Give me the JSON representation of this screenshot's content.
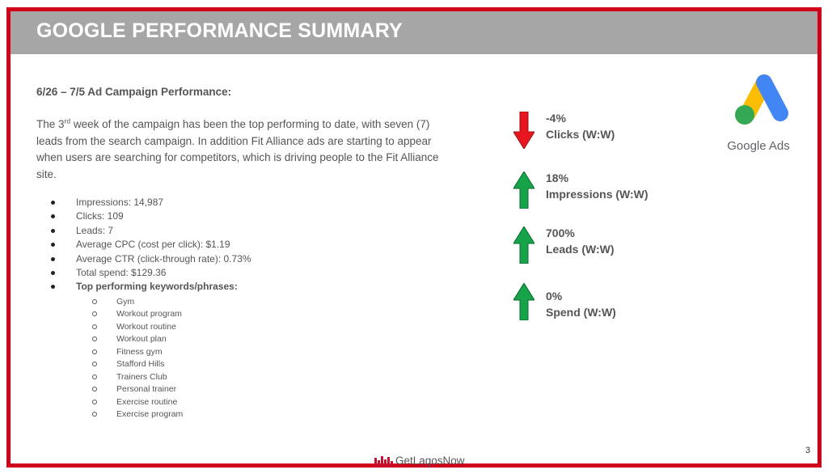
{
  "header": {
    "title": "GOOGLE PERFORMANCE SUMMARY"
  },
  "section": {
    "heading": "6/26 – 7/5 Ad Campaign Performance:"
  },
  "intro": {
    "part1": "The 3",
    "sup": "rd",
    "part2": " week of the campaign has been the top performing to date, with seven (7) leads from the search campaign. In addition Fit Alliance ads are starting to appear when users are searching for competitors, which is driving people to the Fit Alliance site."
  },
  "metrics": [
    "Impressions: 14,987",
    "Clicks: 109",
    "Leads: 7",
    "Average CPC (cost per click): $1.19",
    "Average CTR (click-through rate): 0.73%",
    "Total spend: $129.36",
    "Top performing keywords/phrases:"
  ],
  "keywords": [
    "Gym",
    "Workout program",
    "Workout routine",
    "Workout plan",
    "Fitness gym",
    "Stafford Hills",
    "Trainers Club",
    "Personal trainer",
    "Exercise routine",
    "Exercise program"
  ],
  "stats": [
    {
      "value": "-4%",
      "label": "Clicks (W:W)",
      "direction": "down",
      "color": "#e8171f"
    },
    {
      "value": "18%",
      "label": "Impressions (W:W)",
      "direction": "up",
      "color": "#16a34a"
    },
    {
      "value": "700%",
      "label": "Leads (W:W)",
      "direction": "up",
      "color": "#16a34a"
    },
    {
      "value": "0%",
      "label": "Spend (W:W)",
      "direction": "up",
      "color": "#16a34a"
    }
  ],
  "logo": {
    "wordmark": "Google Ads",
    "icon": "google-ads-logo-icon"
  },
  "footer": {
    "brand": "GetLagosNow",
    "icon": "bar-chart-logo-icon"
  },
  "page": {
    "number": "3"
  },
  "colors": {
    "frame": "#d0021b",
    "title_bar": "#a6a6a6",
    "text": "#555555"
  }
}
